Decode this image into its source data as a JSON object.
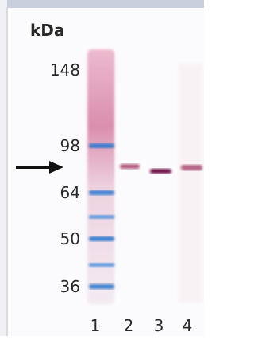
{
  "axis_unit": "kDa",
  "markers": [
    148,
    98,
    64,
    50,
    36
  ],
  "lanes": [
    "1",
    "2",
    "3",
    "4"
  ]
}
